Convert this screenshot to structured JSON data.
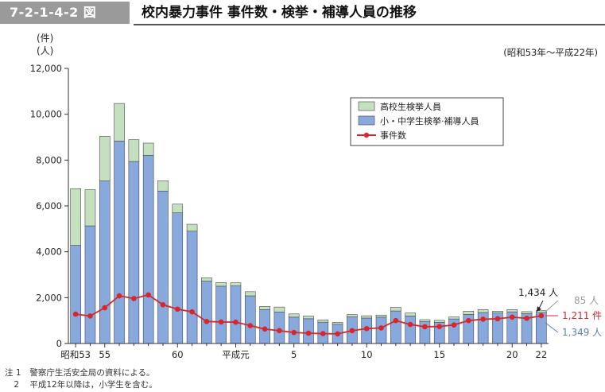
{
  "figure": {
    "number": "7-2-1-4-2 図",
    "title": "校内暴力事件 事件数・検挙・補導人員の推移",
    "unit_top": "(件)",
    "unit_bottom": "(人)",
    "period": "(昭和53年〜平成22年)"
  },
  "notes": [
    {
      "mark": "注 1",
      "text": "警察庁生活安全局の資料による。"
    },
    {
      "mark": "2",
      "text": "平成12年以降は，小学生を含む。"
    }
  ],
  "colors": {
    "high_school": "#c5e0bf",
    "junior": "#87a9dd",
    "incidents": "#d8262a",
    "annotation_gray": "#9a9a9a",
    "annotation_blue": "#5a7fb8"
  },
  "annotations": {
    "total_2010": "1,434 人",
    "high_2010": "85 人",
    "incidents_2010": "1,211 件",
    "junior_2010": "1,349 人"
  },
  "chart_data": {
    "type": "bar",
    "stacked": true,
    "x": [
      "昭和53",
      "54",
      "55",
      "56",
      "57",
      "58",
      "59",
      "60",
      "61",
      "62",
      "63",
      "平成元",
      "2",
      "3",
      "4",
      "5",
      "6",
      "7",
      "8",
      "9",
      "10",
      "11",
      "12",
      "13",
      "14",
      "15",
      "16",
      "17",
      "18",
      "19",
      "20",
      "21",
      "22"
    ],
    "x_tick_labels": [
      "昭和53",
      "55",
      "60",
      "平成元",
      "5",
      "10",
      "15",
      "20",
      "22"
    ],
    "x_tick_indices": [
      0,
      2,
      7,
      11,
      15,
      20,
      25,
      30,
      32
    ],
    "yticks": [
      "0",
      "2,000",
      "4,000",
      "6,000",
      "8,000",
      "10,000",
      "12,000"
    ],
    "ylim": [
      0,
      12000
    ],
    "legend": [
      "高校生検挙人員",
      "小・中学生検挙·補導人員",
      "事件数"
    ],
    "legend_position": "top-right",
    "series": [
      {
        "name": "小・中学生検挙·補導人員",
        "kind": "bar",
        "values": [
          4280,
          5130,
          7090,
          8830,
          7940,
          8210,
          6650,
          5700,
          4900,
          2720,
          2500,
          2510,
          2080,
          1480,
          1370,
          1150,
          1080,
          930,
          840,
          1160,
          1110,
          1150,
          1420,
          1200,
          950,
          920,
          1070,
          1270,
          1350,
          1330,
          1380,
          1300,
          1349
        ]
      },
      {
        "name": "高校生検挙人員",
        "kind": "bar",
        "values": [
          2470,
          1580,
          1950,
          1640,
          950,
          530,
          450,
          380,
          300,
          150,
          160,
          140,
          180,
          140,
          220,
          140,
          120,
          100,
          80,
          100,
          100,
          90,
          160,
          130,
          90,
          90,
          90,
          140,
          130,
          80,
          100,
          90,
          85
        ]
      },
      {
        "name": "事件数",
        "kind": "line",
        "values": [
          1280,
          1200,
          1560,
          2080,
          1960,
          2120,
          1690,
          1500,
          1380,
          960,
          940,
          930,
          780,
          630,
          560,
          480,
          450,
          430,
          420,
          560,
          650,
          680,
          1000,
          830,
          730,
          740,
          810,
          1000,
          1060,
          1080,
          1150,
          1100,
          1211
        ]
      }
    ]
  }
}
